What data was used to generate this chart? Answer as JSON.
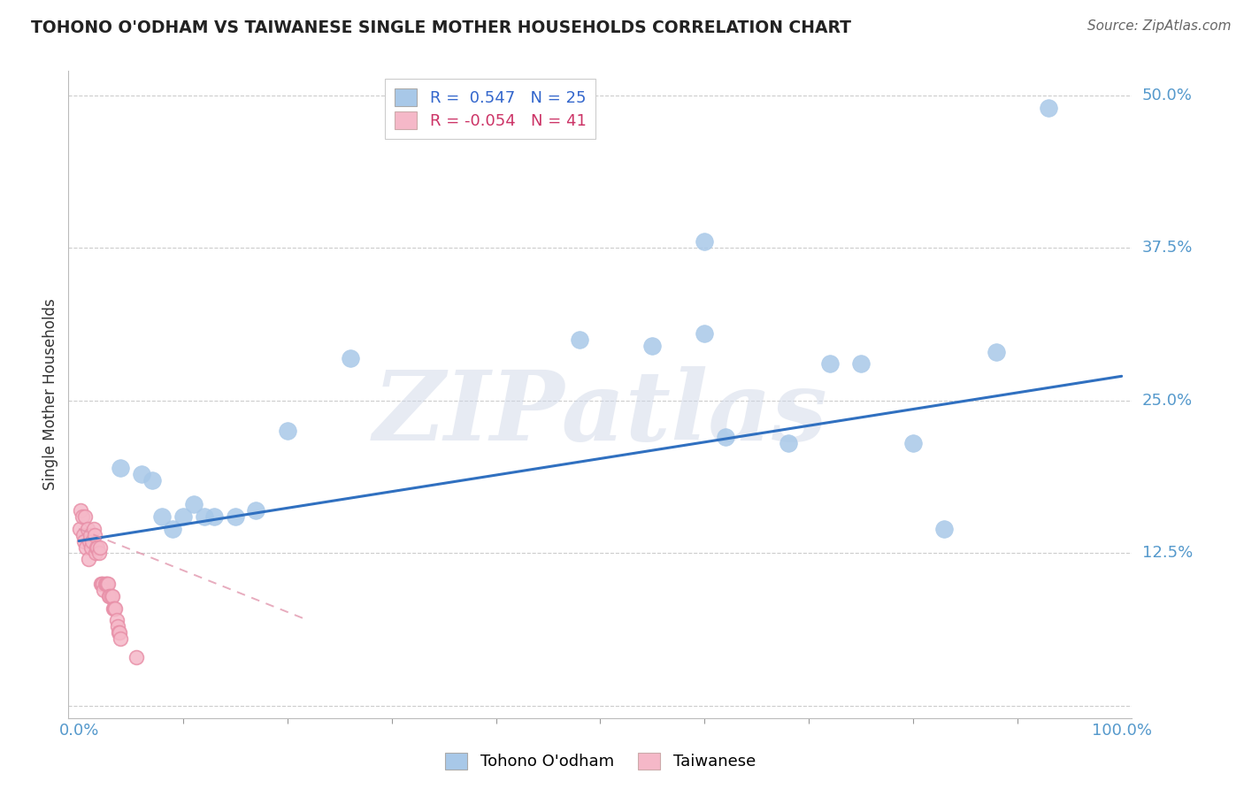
{
  "title": "TOHONO O'ODHAM VS TAIWANESE SINGLE MOTHER HOUSEHOLDS CORRELATION CHART",
  "source": "Source: ZipAtlas.com",
  "ylabel": "Single Mother Households",
  "r_blue": 0.547,
  "n_blue": 25,
  "r_pink": -0.054,
  "n_pink": 41,
  "xlim": [
    -0.01,
    1.01
  ],
  "ylim": [
    -0.01,
    0.52
  ],
  "xtick_vals": [
    0.0,
    1.0
  ],
  "xtick_labels": [
    "0.0%",
    "100.0%"
  ],
  "ytick_vals": [
    0.0,
    0.125,
    0.25,
    0.375,
    0.5
  ],
  "ytick_labels": [
    "",
    "12.5%",
    "25.0%",
    "37.5%",
    "50.0%"
  ],
  "blue_color": "#a8c8e8",
  "blue_edge_color": "#a8c8e8",
  "blue_line_color": "#3070c0",
  "pink_color": "#f5b8c8",
  "pink_edge_color": "#e890a8",
  "pink_line_color": "#e090a8",
  "background_color": "#ffffff",
  "watermark": "ZIPatlas",
  "blue_line_x0": 0.0,
  "blue_line_y0": 0.135,
  "blue_line_x1": 1.0,
  "blue_line_y1": 0.27,
  "pink_line_x0": 0.0,
  "pink_line_y0": 0.145,
  "pink_line_x1": 0.22,
  "pink_line_y1": 0.07,
  "blue_x": [
    0.04,
    0.06,
    0.07,
    0.08,
    0.09,
    0.1,
    0.11,
    0.12,
    0.13,
    0.15,
    0.17,
    0.2,
    0.26,
    0.48,
    0.55,
    0.6,
    0.62,
    0.68,
    0.72,
    0.75,
    0.8,
    0.83,
    0.88,
    0.93,
    0.6
  ],
  "blue_y": [
    0.195,
    0.19,
    0.185,
    0.155,
    0.145,
    0.155,
    0.165,
    0.155,
    0.155,
    0.155,
    0.16,
    0.225,
    0.285,
    0.3,
    0.295,
    0.305,
    0.22,
    0.215,
    0.28,
    0.28,
    0.215,
    0.145,
    0.29,
    0.49,
    0.38
  ],
  "pink_x": [
    0.001,
    0.002,
    0.003,
    0.004,
    0.005,
    0.006,
    0.007,
    0.008,
    0.009,
    0.01,
    0.011,
    0.012,
    0.013,
    0.014,
    0.015,
    0.016,
    0.017,
    0.018,
    0.019,
    0.02,
    0.021,
    0.022,
    0.023,
    0.024,
    0.025,
    0.026,
    0.027,
    0.028,
    0.029,
    0.03,
    0.031,
    0.032,
    0.033,
    0.034,
    0.035,
    0.036,
    0.037,
    0.038,
    0.039,
    0.04,
    0.055
  ],
  "pink_y": [
    0.145,
    0.16,
    0.155,
    0.14,
    0.135,
    0.155,
    0.13,
    0.145,
    0.12,
    0.135,
    0.14,
    0.13,
    0.135,
    0.145,
    0.14,
    0.125,
    0.13,
    0.13,
    0.125,
    0.13,
    0.1,
    0.1,
    0.1,
    0.095,
    0.1,
    0.1,
    0.1,
    0.1,
    0.09,
    0.09,
    0.09,
    0.09,
    0.08,
    0.08,
    0.08,
    0.07,
    0.065,
    0.06,
    0.06,
    0.055,
    0.04
  ]
}
